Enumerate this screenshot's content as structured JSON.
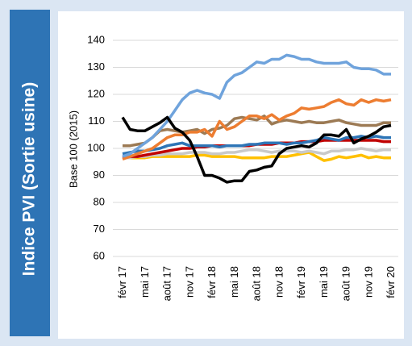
{
  "chart_data": {
    "type": "line",
    "title": "Indice PVI (Sortie usine)",
    "y_label": "Base 100 (2015)",
    "categories": [
      "févr 17",
      null,
      null,
      "mai 17",
      null,
      null,
      "août 17",
      null,
      null,
      "nov 17",
      null,
      null,
      "févr 18",
      null,
      null,
      "mai 18",
      null,
      null,
      "août 18",
      null,
      null,
      "nov 18",
      null,
      null,
      "févr 19",
      null,
      null,
      "mai 19",
      null,
      null,
      "août 19",
      null,
      null,
      "nov 19",
      null,
      null,
      "févr 20"
    ],
    "ylim": [
      60,
      140
    ],
    "yticks": [
      60,
      70,
      80,
      90,
      100,
      110,
      120,
      130,
      140
    ],
    "grid": true,
    "series": [
      {
        "color": "#ffc000",
        "values": [
          96.5,
          96.5,
          96.5,
          96.5,
          97,
          97,
          97,
          97,
          97,
          97,
          97.5,
          97.5,
          97,
          97,
          97,
          97,
          96.5,
          96.5,
          96.5,
          96.5,
          97,
          97,
          97,
          97.5,
          98,
          98.5,
          97,
          95.5,
          96,
          97,
          96.5,
          97,
          97.5,
          96.5,
          97,
          96.5,
          96.5
        ]
      },
      {
        "color": "#c9c9c9",
        "values": [
          96.5,
          96.5,
          97,
          97,
          97.5,
          97.5,
          98,
          98,
          98,
          98.5,
          98.5,
          98.5,
          98,
          98,
          98.5,
          98.5,
          99,
          99.5,
          99.5,
          99,
          98.5,
          99,
          99,
          99,
          98.5,
          99,
          98.5,
          98,
          99,
          99,
          99.5,
          99.5,
          100,
          99.5,
          99,
          99.5,
          99.5
        ]
      },
      {
        "color": "#c00000",
        "values": [
          96.5,
          97,
          97,
          97.5,
          98,
          98.5,
          99,
          99.5,
          100,
          100,
          100.5,
          100.5,
          101,
          101,
          101,
          101,
          101,
          101,
          101.5,
          101.5,
          101.5,
          102,
          102,
          102,
          102.5,
          102.5,
          102.5,
          103,
          103,
          103,
          103,
          103,
          103,
          103,
          103,
          102.5,
          102.5
        ]
      },
      {
        "color": "#2e75b6",
        "values": [
          98,
          98.5,
          99,
          99,
          99.5,
          100,
          101,
          101.5,
          102,
          101,
          101,
          101,
          101,
          100.5,
          101,
          101,
          101,
          101.5,
          101.5,
          102,
          102,
          102,
          101.5,
          102,
          102,
          102.5,
          103,
          104,
          103.5,
          103,
          104,
          104,
          104.5,
          104,
          104.5,
          104,
          104
        ]
      },
      {
        "color": "#9c7a54",
        "values": [
          101,
          101,
          101.5,
          102,
          104,
          106.5,
          107,
          106.5,
          106,
          106.5,
          107,
          105.5,
          107,
          107.5,
          108.5,
          111,
          111.5,
          111,
          110.5,
          112,
          109,
          110,
          110.5,
          110,
          109.5,
          110,
          109.5,
          109.5,
          110,
          110.5,
          109.5,
          109,
          108.5,
          108.5,
          108.5,
          109.5,
          109.5
        ]
      },
      {
        "color": "#ed7d31",
        "values": [
          96,
          97,
          98,
          99,
          100,
          102,
          104,
          105,
          105,
          106,
          106,
          107,
          104.5,
          110,
          107,
          108,
          110,
          112,
          112,
          111,
          112.5,
          110.5,
          112,
          113,
          115,
          114.5,
          115,
          115.5,
          117,
          118,
          116.5,
          116,
          118,
          117,
          118,
          117.5,
          118
        ]
      },
      {
        "color": "#6fa3dc",
        "values": [
          97,
          98,
          100,
          102,
          104,
          107,
          110,
          114,
          118,
          120.5,
          121.5,
          120.5,
          120,
          118.5,
          124.5,
          127,
          128,
          130,
          132,
          131.5,
          133,
          133,
          134.5,
          134,
          133,
          133,
          132,
          131.5,
          131.5,
          131.5,
          132,
          130,
          129.5,
          129.5,
          129,
          127.5,
          127.5
        ]
      },
      {
        "color": "#000000",
        "values": [
          111.5,
          107,
          106.5,
          106.5,
          108,
          109.5,
          111.5,
          107.5,
          106,
          103,
          97,
          90,
          90,
          89,
          87.5,
          88,
          88,
          91.5,
          92,
          93,
          93.5,
          98,
          100,
          100.5,
          101,
          100.5,
          102,
          105,
          105,
          104.5,
          107,
          102,
          103.5,
          104.5,
          106,
          108,
          108.5
        ]
      }
    ]
  }
}
